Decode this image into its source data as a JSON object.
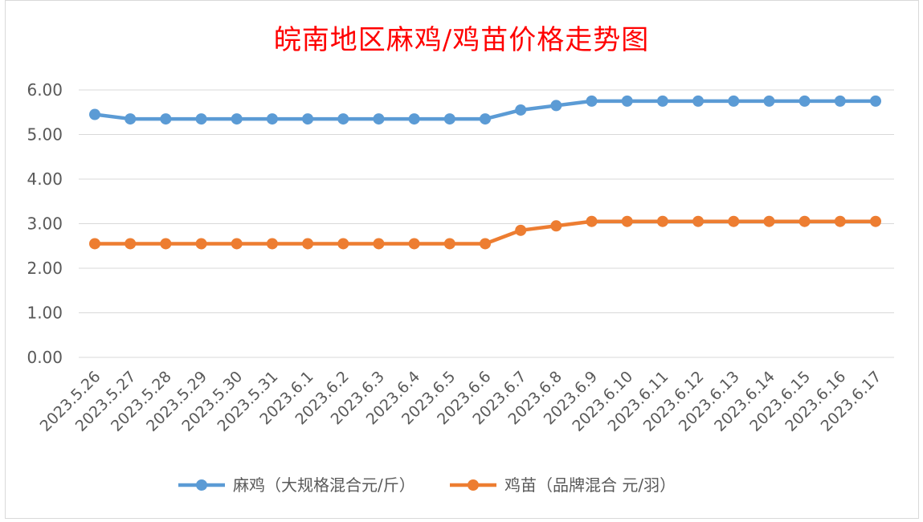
{
  "chart_data": {
    "type": "line",
    "title": "皖南地区麻鸡/鸡苗价格走势图",
    "categories": [
      "2023.5.26",
      "2023.5.27",
      "2023.5.28",
      "2023.5.29",
      "2023.5.30",
      "2023.5.31",
      "2023.6.1",
      "2023.6.2",
      "2023.6.3",
      "2023.6.4",
      "2023.6.5",
      "2023.6.6",
      "2023.6.7",
      "2023.6.8",
      "2023.6.9",
      "2023.6.10",
      "2023.6.11",
      "2023.6.12",
      "2023.6.13",
      "2023.6.14",
      "2023.6.15",
      "2023.6.16",
      "2023.6.17"
    ],
    "series": [
      {
        "name": "麻鸡（大规格混合元/斤）",
        "color": "#5b9bd5",
        "values": [
          5.45,
          5.35,
          5.35,
          5.35,
          5.35,
          5.35,
          5.35,
          5.35,
          5.35,
          5.35,
          5.35,
          5.35,
          5.55,
          5.65,
          5.75,
          5.75,
          5.75,
          5.75,
          5.75,
          5.75,
          5.75,
          5.75,
          5.75
        ]
      },
      {
        "name": "鸡苗（品牌混合 元/羽）",
        "color": "#ed7d31",
        "values": [
          2.55,
          2.55,
          2.55,
          2.55,
          2.55,
          2.55,
          2.55,
          2.55,
          2.55,
          2.55,
          2.55,
          2.55,
          2.85,
          2.95,
          3.05,
          3.05,
          3.05,
          3.05,
          3.05,
          3.05,
          3.05,
          3.05,
          3.05
        ]
      }
    ],
    "yticks": [
      "0.00",
      "1.00",
      "2.00",
      "3.00",
      "4.00",
      "5.00",
      "6.00"
    ],
    "ylim": [
      0,
      6
    ],
    "grid": true,
    "legend": "bottom",
    "xlabel": "",
    "ylabel": ""
  }
}
